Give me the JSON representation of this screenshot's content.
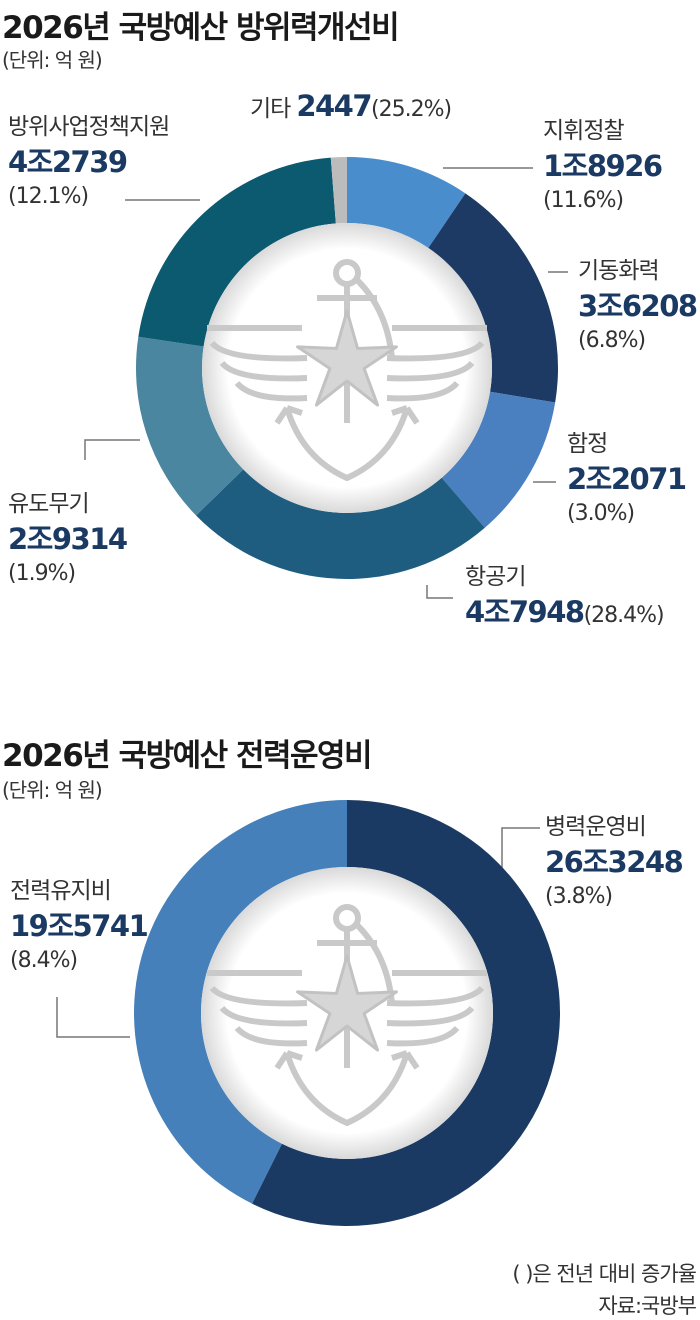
{
  "chart_data": [
    {
      "type": "pie",
      "style": "donut",
      "title": "2026년 국방예산 방위력개선비",
      "unit": "(단위: 억 원)",
      "start": "top",
      "direction": "clockwise",
      "series": [
        {
          "name": "지휘정찰",
          "value": 18926,
          "value_label": "1조8926",
          "change": "(11.6%)",
          "color": "#4a8dcc"
        },
        {
          "name": "기동화력",
          "value": 36208,
          "value_label": "3조6208",
          "change": "(6.8%)",
          "color": "#1c3a63"
        },
        {
          "name": "함정",
          "value": 22071,
          "value_label": "2조2071",
          "change": "(3.0%)",
          "color": "#4a80bf"
        },
        {
          "name": "항공기",
          "value": 47948,
          "value_label": "4조7948",
          "change": "(28.4%)",
          "color": "#1e5d80"
        },
        {
          "name": "유도무기",
          "value": 29314,
          "value_label": "2조9314",
          "change": "(1.9%)",
          "color": "#4b86a0"
        },
        {
          "name": "방위사업정책지원",
          "value": 42739,
          "value_label": "4조2739",
          "change": "(12.1%)",
          "color": "#0b5a6f"
        },
        {
          "name": "기타",
          "value": 2447,
          "value_label": "2447",
          "change": "(25.2%)",
          "color": "#bcbcbc"
        }
      ]
    },
    {
      "type": "pie",
      "style": "donut",
      "title": "2026년 국방예산 전력운영비",
      "unit": "(단위: 억 원)",
      "start": "top",
      "direction": "clockwise",
      "series": [
        {
          "name": "병력운영비",
          "value": 263248,
          "value_label": "26조3248",
          "change": "(3.8%)",
          "color": "#1b3a63"
        },
        {
          "name": "전력유지비",
          "value": 195741,
          "value_label": "19조5741",
          "change": "(8.4%)",
          "color": "#4680bb"
        }
      ]
    }
  ],
  "note": "(  )은 전년 대비 증가율",
  "source": "자료:국방부",
  "emblem": "ministry-of-defense-emblem"
}
